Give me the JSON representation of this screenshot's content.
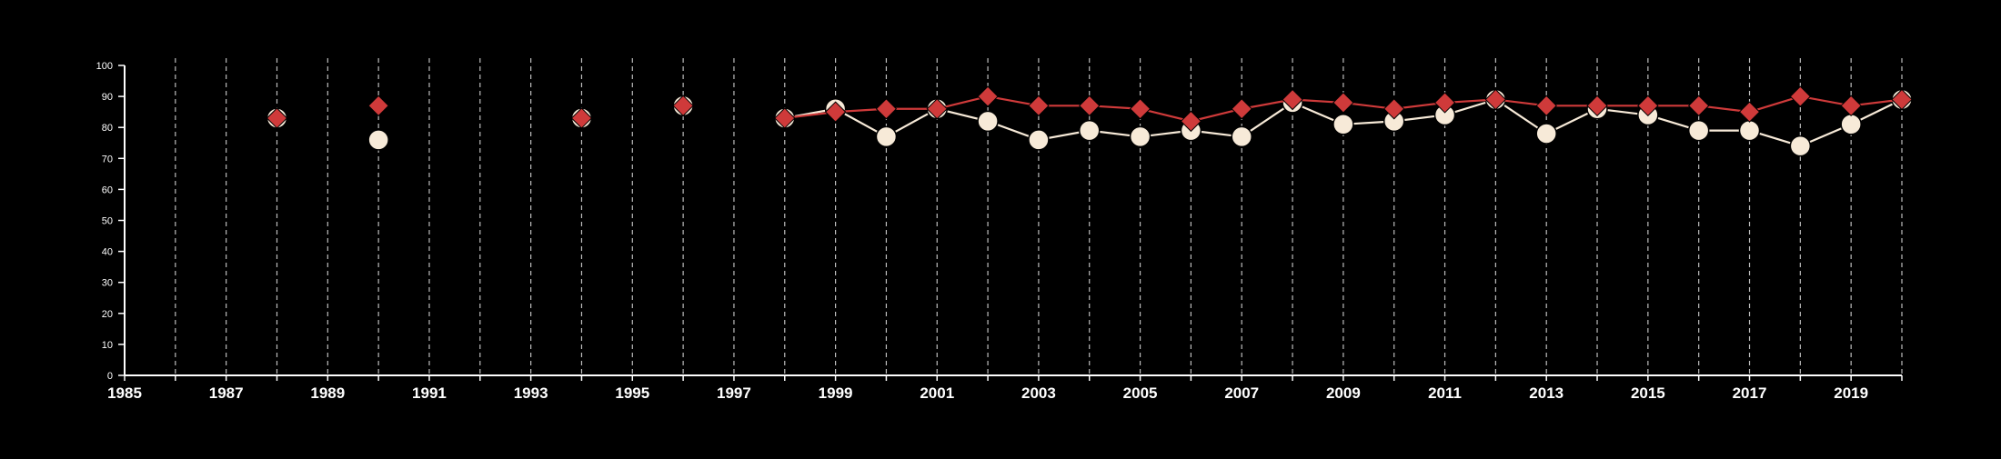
{
  "chart_data": {
    "type": "line",
    "title": "",
    "xlabel": "",
    "ylabel": "",
    "xlim": [
      1985,
      2020
    ],
    "ylim": [
      0,
      100
    ],
    "grid": "vertical dashed lines at each year",
    "yticks": [
      "0",
      "10",
      "20",
      "30",
      "40",
      "50",
      "60",
      "70",
      "80",
      "90",
      "100"
    ],
    "xticks": [
      "1985",
      "1987",
      "1989",
      "1991",
      "1993",
      "1995",
      "1997",
      "1999",
      "2001",
      "2003",
      "2005",
      "2007",
      "2009",
      "2011",
      "2013",
      "2015",
      "2017",
      "2019"
    ],
    "series": [
      {
        "marker": "circle",
        "color": "#f7ead8",
        "x": [
          1988,
          1990,
          1994,
          1996,
          1998,
          1999,
          2000,
          2001,
          2002,
          2003,
          2004,
          2005,
          2006,
          2007,
          2008,
          2009,
          2010,
          2011,
          2012,
          2013,
          2014,
          2015,
          2016,
          2017,
          2018,
          2019,
          2020
        ],
        "y": [
          83,
          76,
          83,
          87,
          83,
          86,
          77,
          86,
          82,
          76,
          79,
          77,
          79,
          77,
          88,
          81,
          82,
          84,
          89,
          78,
          86,
          84,
          79,
          79,
          74,
          81,
          89
        ]
      },
      {
        "marker": "diamond",
        "color": "#cf3a3a",
        "x": [
          1988,
          1990,
          1994,
          1996,
          1998,
          1999,
          2000,
          2001,
          2002,
          2003,
          2004,
          2005,
          2006,
          2007,
          2008,
          2009,
          2010,
          2011,
          2012,
          2013,
          2014,
          2015,
          2016,
          2017,
          2018,
          2019,
          2020
        ],
        "y": [
          83,
          87,
          83,
          87,
          83,
          85,
          86,
          86,
          90,
          87,
          87,
          86,
          82,
          86,
          89,
          88,
          86,
          88,
          89,
          87,
          87,
          87,
          87,
          85,
          90,
          87,
          89
        ]
      }
    ]
  }
}
